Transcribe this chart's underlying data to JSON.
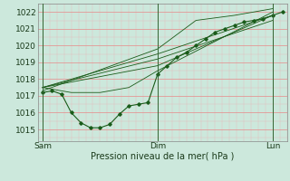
{
  "title": "Pression niveau de la mer( hPa )",
  "bg_color": "#cce8dc",
  "plot_bg_color": "#cce8dc",
  "grid_color_major": "#e88888",
  "grid_color_minor": "#e8bbbb",
  "line_color": "#1a5c1a",
  "ylim": [
    1014.3,
    1022.5
  ],
  "yticks": [
    1015,
    1016,
    1017,
    1018,
    1019,
    1020,
    1021,
    1022
  ],
  "xlim": [
    -2,
    102
  ],
  "xtick_positions": [
    0,
    48,
    96
  ],
  "xtick_labels": [
    "Sam",
    "Dim",
    "Lun"
  ],
  "series": [
    [
      0,
      1017.2,
      4,
      1017.3,
      8,
      1017.1,
      12,
      1016.0,
      16,
      1015.4,
      20,
      1015.1,
      24,
      1015.1,
      28,
      1015.3,
      32,
      1015.9,
      36,
      1016.4,
      40,
      1016.5,
      44,
      1016.6,
      48,
      1018.3,
      52,
      1018.8,
      56,
      1019.3,
      60,
      1019.6,
      64,
      1020.0,
      68,
      1020.4,
      72,
      1020.8,
      76,
      1021.0,
      80,
      1021.2,
      84,
      1021.4,
      88,
      1021.5,
      92,
      1021.6,
      96,
      1021.8,
      100,
      1022.0
    ],
    [
      0,
      1017.5,
      48,
      1019.5,
      96,
      1021.8
    ],
    [
      0,
      1017.5,
      48,
      1018.8,
      96,
      1021.8
    ],
    [
      0,
      1017.3,
      48,
      1019.8,
      64,
      1021.5,
      80,
      1021.8,
      96,
      1022.2
    ],
    [
      0,
      1017.5,
      12,
      1017.2,
      24,
      1017.2,
      36,
      1017.5,
      48,
      1018.5,
      96,
      1022.0
    ],
    [
      0,
      1017.5,
      48,
      1019.2,
      96,
      1021.5
    ]
  ],
  "vlines": [
    0,
    48,
    96
  ],
  "vline_color": "#336633"
}
